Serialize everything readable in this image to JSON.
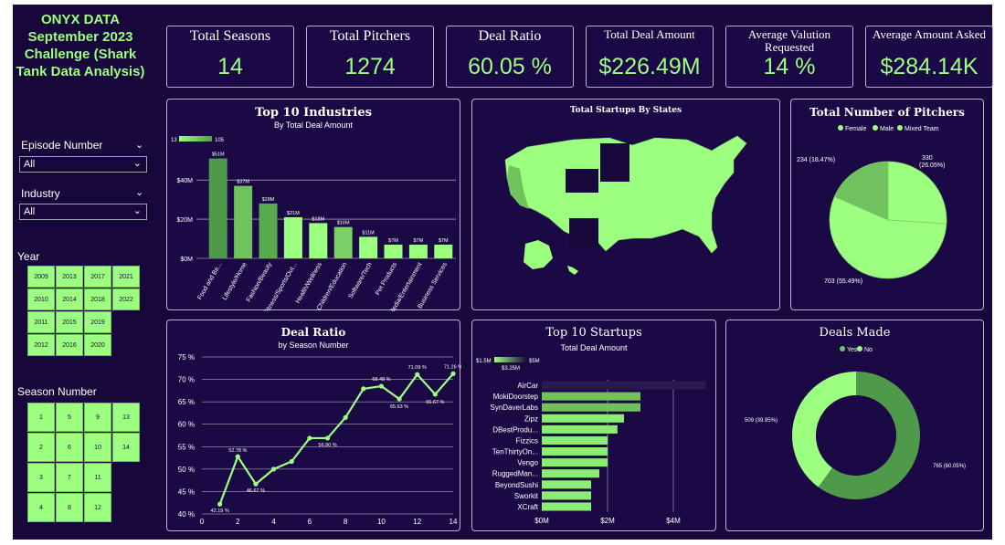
{
  "sidebar": {
    "title_lines": [
      "ONYX DATA",
      "September 2023",
      "Challenge (Shark",
      "Tank Data Analysis)"
    ],
    "episode_label": "Episode Number",
    "episode_value": "All",
    "industry_label": "Industry",
    "industry_value": "All",
    "year_label": "Year",
    "years": [
      "2009",
      "2013",
      "2017",
      "2021",
      "2010",
      "2014",
      "2018",
      "2022",
      "2011",
      "2015",
      "2019",
      "2012",
      "2016",
      "2020"
    ],
    "season_label": "Season Number",
    "seasons": [
      "1",
      "5",
      "9",
      "13",
      "2",
      "6",
      "10",
      "14",
      "3",
      "7",
      "11",
      "4",
      "8",
      "12"
    ]
  },
  "kpis": {
    "total_seasons": {
      "label": "Total Seasons",
      "value": "14"
    },
    "total_pitchers": {
      "label": "Total Pitchers",
      "value": "1274"
    },
    "deal_ratio": {
      "label": "Deal Ratio",
      "value": "60.05 %"
    },
    "total_deal_amount": {
      "label": "Total Deal Amount",
      "value": "$226.49M"
    },
    "avg_valuation": {
      "label_lines": [
        "Average Valution",
        "Requested"
      ],
      "value": "14 %"
    },
    "avg_amount_asked": {
      "label": "Average Amount Asked",
      "value": "$284.14K"
    }
  },
  "colors": {
    "accent": "#9dff80",
    "dark_green": "#4f9a4a",
    "mid_green": "#6fc25d",
    "background": "#17073a",
    "panel": "#1b0945"
  },
  "chart_data": [
    {
      "type": "bar",
      "title": "Top 10 Industries",
      "subtitle": "By Total Deal Amount",
      "legend_min": "13",
      "legend_max": "105",
      "categories": [
        "Food and Be...",
        "Lifestyle/Home",
        "Fashion/Beauty",
        "Fitness/Sports/Out...",
        "Health/Wellness",
        "Children/Education",
        "Software/Tech",
        "Pet Products",
        "Media/Entertainment",
        "Business Services"
      ],
      "values": [
        51,
        37,
        28,
        21,
        18,
        16,
        11,
        7,
        7,
        7
      ],
      "data_labels": [
        "$51M",
        "$37M",
        "$28M",
        "$21M",
        "$18M",
        "$16M",
        "$11M",
        "$7M",
        "$7M",
        "$7M"
      ],
      "shades": [
        "#4f9a4a",
        "#6fc25d",
        "#5aab50",
        "#9dff80",
        "#9dff80",
        "#7ad066",
        "#9dff80",
        "#9dff80",
        "#9dff80",
        "#9dff80"
      ],
      "yticks": [
        "$0M",
        "$20M",
        "$40M"
      ],
      "ylim": [
        0,
        55
      ]
    },
    {
      "type": "map",
      "title": "Total Startups By States"
    },
    {
      "type": "pie",
      "title": "Total Number of Pitchers",
      "legend": [
        "Female",
        "Male",
        "Mixed Team"
      ],
      "values": [
        330,
        703,
        234
      ],
      "labels": [
        "330",
        "703 (55.49%)",
        "234 (18.47%)"
      ],
      "label_pct": [
        "(26.05%)"
      ]
    },
    {
      "type": "line",
      "title": "Deal Ratio",
      "subtitle": "by Season Number",
      "x": [
        1,
        2,
        3,
        4,
        5,
        6,
        7,
        8,
        9,
        10,
        11,
        12,
        13,
        14
      ],
      "y": [
        42.19,
        52.78,
        46.67,
        50.0,
        51.7,
        56.9,
        56.9,
        61.5,
        67.9,
        68.48,
        65.63,
        71.09,
        66.67,
        71.26
      ],
      "data_labels": {
        "1": "42.19 %",
        "2": "52.78 %",
        "3": "46.67 %",
        "7": "56.90 %",
        "10": "68.48 %",
        "11": "65.63 %",
        "12": "71.09 %",
        "13": "66.67 %",
        "14": "71.26 %"
      },
      "yticks": [
        "40 %",
        "45 %",
        "50 %",
        "55 %",
        "60 %",
        "65 %",
        "70 %",
        "75 %"
      ],
      "xticks": [
        "0",
        "2",
        "4",
        "6",
        "8",
        "10",
        "12",
        "14"
      ],
      "ylim": [
        40,
        75
      ],
      "xlim": [
        0,
        14
      ]
    },
    {
      "type": "bar",
      "orientation": "horizontal",
      "title": "Top 10 Startups",
      "subtitle": "Total Deal Amount",
      "legend_min": "$1.5M",
      "legend_mid": "$3.25M",
      "legend_max": "$5M",
      "categories": [
        "AirCar",
        "MokiDoorstep",
        "SynDaverLabs",
        "Zipz",
        "DBestProdu...",
        "Fizzics",
        "TenThirtyOn...",
        "Vengo",
        "RuggedMan...",
        "BeyondSushi",
        "Sworkit",
        "XCraft"
      ],
      "values": [
        5.0,
        3.0,
        3.0,
        2.5,
        2.3,
        2.0,
        2.0,
        2.0,
        1.75,
        1.5,
        1.5,
        1.5
      ],
      "xticks": [
        "$0M",
        "$2M",
        "$4M"
      ],
      "xlim": [
        0,
        5
      ]
    },
    {
      "type": "pie",
      "style": "donut",
      "title": "Deals Made",
      "legend": [
        "Yes",
        "No"
      ],
      "values": [
        765,
        509
      ],
      "labels": [
        "765 (60.05%)",
        "509 (39.95%)"
      ]
    }
  ]
}
